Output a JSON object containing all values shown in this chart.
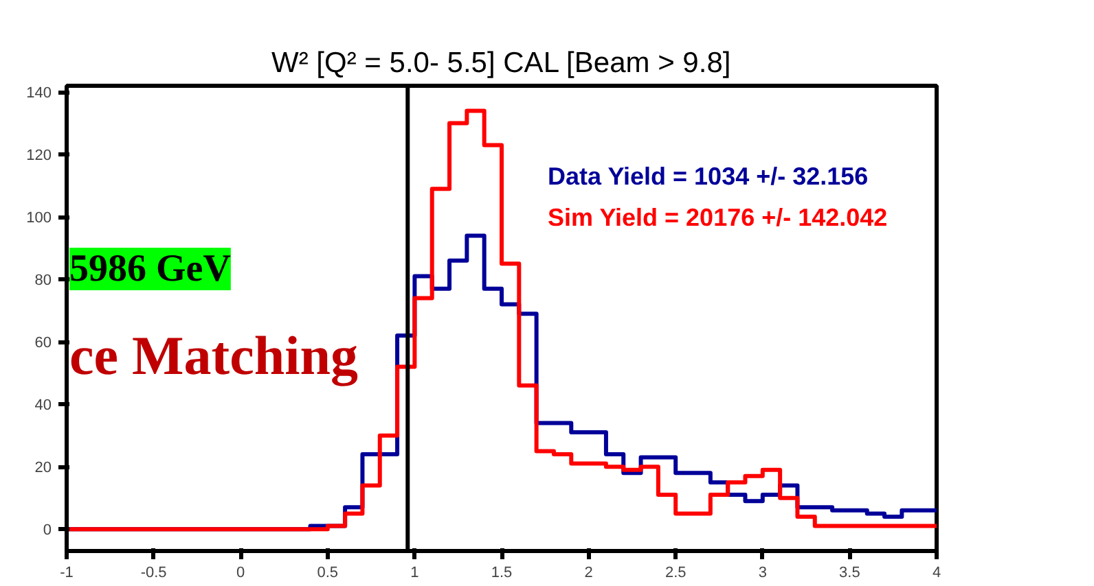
{
  "chart_data": {
    "type": "histogram",
    "title": "W² [Q² = 5.0- 5.5] CAL [Beam > 9.8]",
    "bins": [
      -1.0,
      -0.9,
      -0.8,
      -0.7,
      -0.6,
      -0.5,
      -0.4,
      -0.3,
      -0.2,
      -0.1,
      0.0,
      0.1,
      0.2,
      0.3,
      0.4,
      0.5,
      0.6,
      0.7,
      0.8,
      0.9,
      1.0,
      1.1,
      1.2,
      1.3,
      1.4,
      1.5,
      1.6,
      1.7,
      1.8,
      1.9,
      2.0,
      2.1,
      2.2,
      2.3,
      2.4,
      2.5,
      2.6,
      2.7,
      2.8,
      2.9,
      3.0,
      3.1,
      3.2,
      3.3,
      3.4,
      3.5,
      3.6,
      3.7,
      3.8,
      3.9,
      4.0
    ],
    "series": [
      {
        "name": "Data Yield = 1034 +/- 32.156",
        "color": "#000099",
        "values": [
          0,
          0,
          0,
          0,
          0,
          0,
          0,
          0,
          0,
          0,
          0,
          0,
          0,
          0,
          1,
          1,
          7,
          24,
          24,
          62,
          81,
          77,
          86,
          94,
          77,
          72,
          69,
          34,
          34,
          31,
          31,
          24,
          18,
          23,
          23,
          18,
          18,
          15,
          11,
          9,
          11,
          14,
          7,
          7,
          6,
          6,
          5,
          4,
          6,
          6
        ]
      },
      {
        "name": "Sim Yield = 20176 +/- 142.042",
        "color": "#ff0000",
        "values": [
          0,
          0,
          0,
          0,
          0,
          0,
          0,
          0,
          0,
          0,
          0,
          0,
          0,
          0,
          0,
          1,
          5,
          14,
          30,
          52,
          74,
          109,
          130,
          134,
          123,
          85,
          46,
          25,
          24,
          21,
          21,
          20,
          19,
          20,
          11,
          5,
          5,
          11,
          15,
          17,
          19,
          10,
          4,
          1,
          1,
          1,
          1,
          1,
          1,
          1
        ]
      }
    ],
    "xlim": [
      -1,
      4
    ],
    "ylim": [
      -7,
      142
    ],
    "xticks": [
      -1,
      -0.5,
      0,
      0.5,
      1,
      1.5,
      2,
      2.5,
      3,
      3.5,
      4
    ],
    "yticks": [
      0,
      20,
      40,
      60,
      80,
      100,
      120,
      140
    ],
    "ref_lines": [
      {
        "axis": "x",
        "value": 0.96,
        "color": "#000000"
      }
    ],
    "grid": false,
    "annotations": [
      "5986 GeV",
      "ce Matching"
    ]
  }
}
